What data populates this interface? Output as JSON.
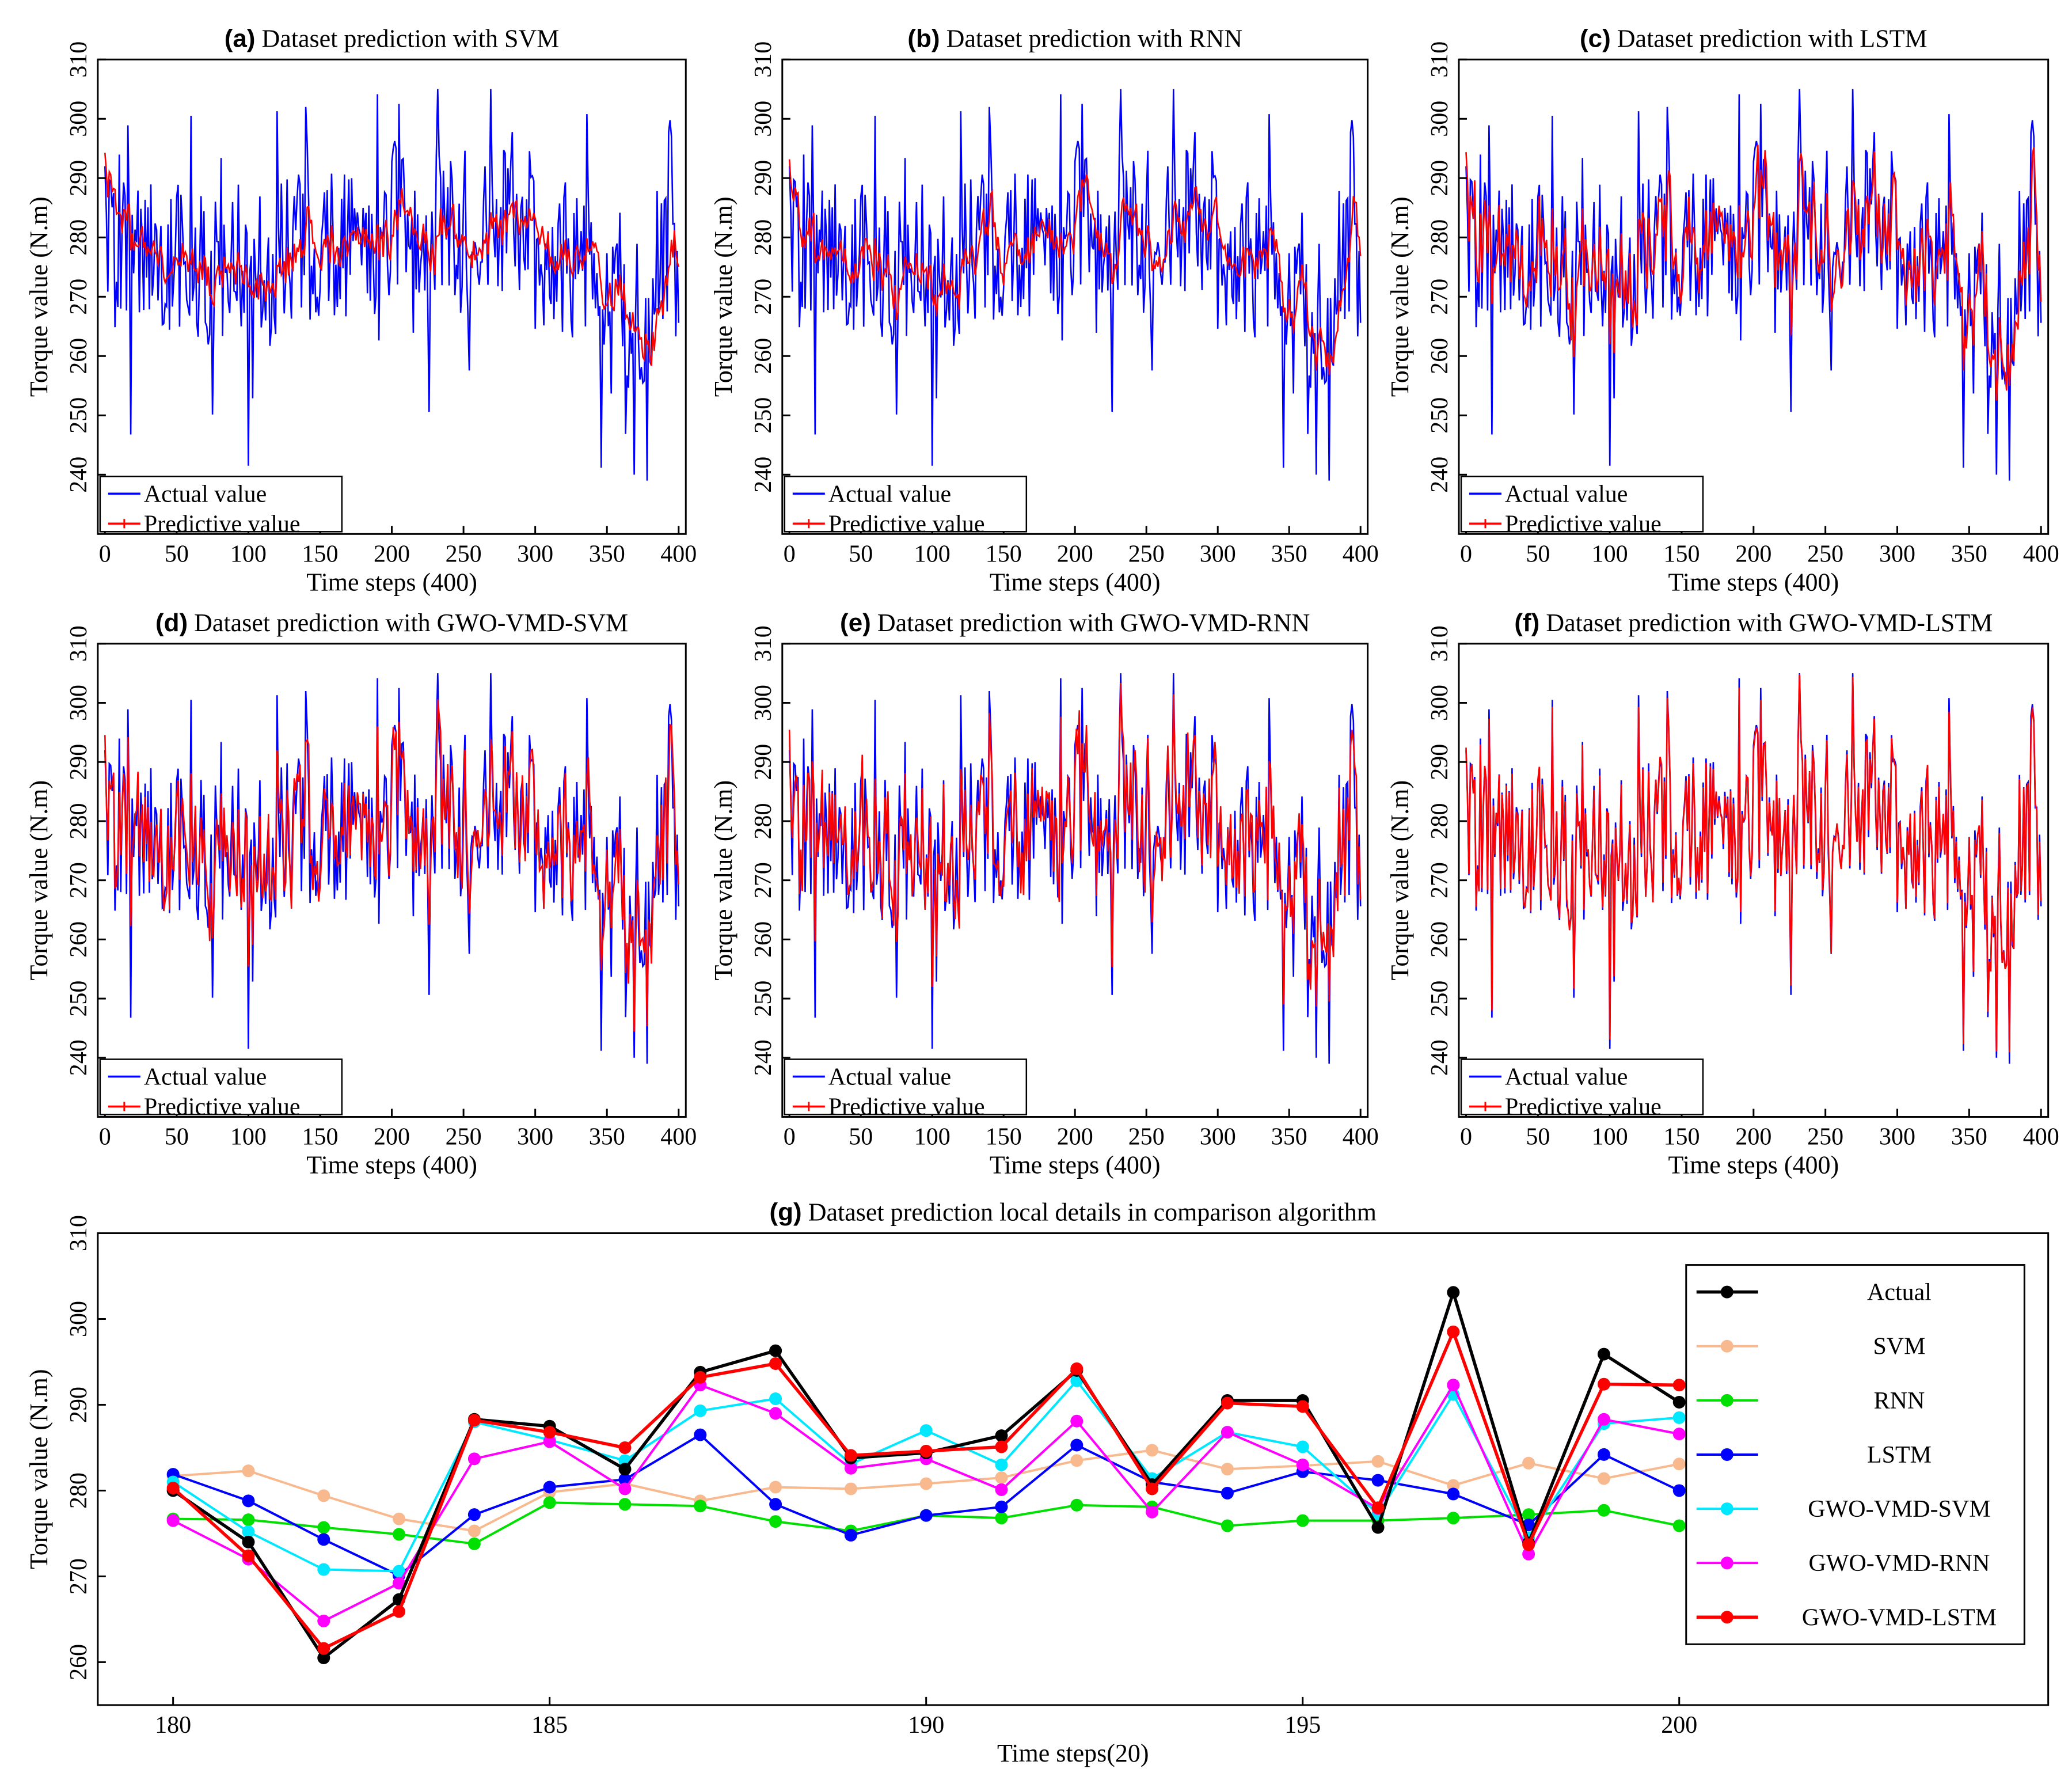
{
  "chart_data": [
    {
      "type": "line",
      "panel": "(a)",
      "title": "Dataset prediction with SVM",
      "xlabel": "Time steps (400)",
      "ylabel": "Torque value  (N.m)",
      "xlim": [
        -5,
        405
      ],
      "ylim": [
        230,
        310
      ],
      "xticks": [
        0,
        50,
        100,
        150,
        200,
        250,
        300,
        350,
        400
      ],
      "yticks": [
        240,
        250,
        260,
        270,
        280,
        290,
        300,
        310
      ],
      "legend": [
        "Actual value",
        "Predictive value"
      ],
      "prediction_model": {
        "noise": 2.5,
        "smooth": 0.9,
        "bias": -3
      },
      "colors": {
        "actual": "#0000ff",
        "predicted": "#ff0000"
      }
    },
    {
      "type": "line",
      "panel": "(b)",
      "title": "Dataset prediction with RNN",
      "xlabel": "Time steps (400)",
      "ylabel": "Torque value  (N.m)",
      "xlim": [
        -5,
        405
      ],
      "ylim": [
        230,
        310
      ],
      "xticks": [
        0,
        50,
        100,
        150,
        200,
        250,
        300,
        350,
        400
      ],
      "yticks": [
        240,
        250,
        260,
        270,
        280,
        290,
        300,
        310
      ],
      "legend": [
        "Actual value",
        "Predictive value"
      ],
      "prediction_model": {
        "noise": 1.5,
        "smooth": 0.8,
        "bias": 0
      },
      "colors": {
        "actual": "#0000ff",
        "predicted": "#ff0000"
      }
    },
    {
      "type": "line",
      "panel": "(c)",
      "title": "Dataset prediction with LSTM",
      "xlabel": "Time steps (400)",
      "ylabel": "Torque value  (N.m)",
      "xlim": [
        -5,
        405
      ],
      "ylim": [
        230,
        310
      ],
      "xticks": [
        0,
        50,
        100,
        150,
        200,
        250,
        300,
        350,
        400
      ],
      "yticks": [
        240,
        250,
        260,
        270,
        280,
        290,
        300,
        310
      ],
      "legend": [
        "Actual value",
        "Predictive value"
      ],
      "prediction_model": {
        "noise": 3,
        "smooth": 0.55,
        "bias": 0
      },
      "colors": {
        "actual": "#0000ff",
        "predicted": "#ff0000"
      }
    },
    {
      "type": "line",
      "panel": "(d)",
      "title": "Dataset prediction with GWO-VMD-SVM",
      "xlabel": "Time steps (400)",
      "ylabel": "Torque value  (N.m)",
      "xlim": [
        -5,
        405
      ],
      "ylim": [
        230,
        310
      ],
      "xticks": [
        0,
        50,
        100,
        150,
        200,
        250,
        300,
        350,
        400
      ],
      "yticks": [
        240,
        250,
        260,
        270,
        280,
        290,
        300,
        310
      ],
      "legend": [
        "Actual value",
        "Predictive value"
      ],
      "prediction_model": {
        "noise": 4,
        "smooth": 0.35,
        "bias": 0
      },
      "colors": {
        "actual": "#0000ff",
        "predicted": "#ff0000"
      }
    },
    {
      "type": "line",
      "panel": "(e)",
      "title": "Dataset prediction with GWO-VMD-RNN",
      "xlabel": "Time steps (400)",
      "ylabel": "Torque value  (N.m)",
      "xlim": [
        -5,
        405
      ],
      "ylim": [
        230,
        310
      ],
      "xticks": [
        0,
        50,
        100,
        150,
        200,
        250,
        300,
        350,
        400
      ],
      "yticks": [
        240,
        250,
        260,
        270,
        280,
        290,
        300,
        310
      ],
      "legend": [
        "Actual value",
        "Predictive value"
      ],
      "prediction_model": {
        "noise": 4,
        "smooth": 0.3,
        "bias": 0
      },
      "colors": {
        "actual": "#0000ff",
        "predicted": "#ff0000"
      }
    },
    {
      "type": "line",
      "panel": "(f)",
      "title": "Dataset prediction with GWO-VMD-LSTM",
      "xlabel": "Time steps (400)",
      "ylabel": "Torque value  (N.m)",
      "xlim": [
        -5,
        405
      ],
      "ylim": [
        230,
        310
      ],
      "xticks": [
        0,
        50,
        100,
        150,
        200,
        250,
        300,
        350,
        400
      ],
      "yticks": [
        240,
        250,
        260,
        270,
        280,
        290,
        300,
        310
      ],
      "legend": [
        "Actual value",
        "Predictive value"
      ],
      "prediction_model": {
        "noise": 0.6,
        "smooth": 0.05,
        "bias": 0
      },
      "colors": {
        "actual": "#0000ff",
        "predicted": "#ff0000"
      }
    },
    {
      "type": "line",
      "panel": "(g)",
      "title": "Dataset prediction local details in comparison algorithm",
      "xlabel": "Time steps(20)",
      "ylabel": "Torque value  (N.m)",
      "xlim": [
        179,
        204.9
      ],
      "ylim": [
        255,
        310
      ],
      "xticks": [
        180,
        185,
        190,
        195,
        200
      ],
      "yticks": [
        260,
        270,
        280,
        290,
        300,
        310
      ],
      "x": [
        180,
        181,
        182,
        183,
        184,
        185,
        186,
        187,
        188,
        189,
        190,
        191,
        192,
        193,
        194,
        195,
        196,
        197,
        198,
        199,
        200
      ],
      "series": [
        {
          "name": "Actual",
          "color": "#000000",
          "values": [
            280.0,
            274.0,
            260.5,
            267.3,
            288.3,
            287.5,
            282.5,
            293.8,
            296.3,
            283.8,
            284.4,
            286.4,
            294.0,
            280.7,
            290.5,
            290.5,
            275.7,
            303.1,
            273.9,
            295.9,
            290.3
          ]
        },
        {
          "name": "SVM",
          "color": "#f8b98f",
          "values": [
            281.7,
            282.3,
            279.4,
            276.7,
            275.3,
            279.8,
            280.8,
            278.8,
            280.4,
            280.2,
            280.8,
            281.5,
            283.5,
            284.7,
            282.5,
            282.9,
            283.4,
            280.6,
            283.2,
            281.4,
            283.1
          ]
        },
        {
          "name": "RNN",
          "color": "#00e000",
          "values": [
            276.7,
            276.6,
            275.7,
            274.9,
            273.8,
            278.6,
            278.4,
            278.2,
            276.4,
            275.3,
            277.1,
            276.8,
            278.3,
            278.1,
            275.9,
            276.5,
            276.5,
            276.8,
            277.2,
            277.7,
            275.9
          ]
        },
        {
          "name": "LSTM",
          "color": "#0000ff",
          "values": [
            281.9,
            278.8,
            274.3,
            270.1,
            277.2,
            280.4,
            281.3,
            286.5,
            278.4,
            274.8,
            277.1,
            278.1,
            285.3,
            281.0,
            279.7,
            282.2,
            281.2,
            279.6,
            276.0,
            284.2,
            280.0
          ]
        },
        {
          "name": "GWO-VMD-SVM",
          "color": "#00e8ff",
          "values": [
            281.0,
            275.2,
            270.8,
            270.6,
            288.0,
            285.9,
            283.5,
            289.3,
            290.7,
            283.1,
            287.0,
            283.0,
            292.8,
            281.4,
            286.8,
            285.1,
            277.3,
            291.2,
            274.5,
            287.8,
            288.5
          ]
        },
        {
          "name": "GWO-VMD-RNN",
          "color": "#ff00ff",
          "values": [
            276.5,
            272.0,
            264.8,
            269.2,
            283.7,
            285.7,
            280.2,
            292.3,
            289.0,
            282.6,
            283.7,
            280.1,
            288.1,
            277.5,
            286.8,
            283.0,
            277.9,
            292.3,
            272.6,
            288.3,
            286.6
          ]
        },
        {
          "name": "GWO-VMD-LSTM",
          "color": "#ff0000",
          "values": [
            280.3,
            272.4,
            261.6,
            265.9,
            288.2,
            286.8,
            285.0,
            293.2,
            294.8,
            284.1,
            284.6,
            285.1,
            294.2,
            280.2,
            290.2,
            289.8,
            278.0,
            298.5,
            273.7,
            292.4,
            292.3
          ]
        }
      ]
    }
  ]
}
